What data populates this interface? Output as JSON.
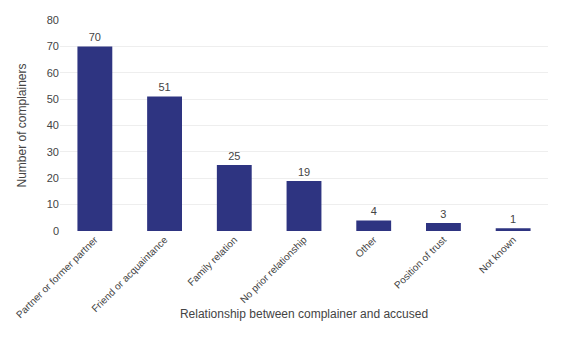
{
  "chart_data": {
    "type": "bar",
    "categories": [
      "Partner or former partner",
      "Friend or acquaintance",
      "Family relation",
      "No prior relationship",
      "Other",
      "Position of trust",
      "Not known"
    ],
    "values": [
      70,
      51,
      25,
      19,
      4,
      3,
      1
    ],
    "color": "#2E3481",
    "xlabel": "Relationship between complainer and accused",
    "ylabel": "Number of complainers",
    "ylim": [
      0,
      80
    ],
    "yticks": [
      0,
      10,
      20,
      30,
      40,
      50,
      60,
      70,
      80
    ],
    "grid": true,
    "data_labels": true
  }
}
